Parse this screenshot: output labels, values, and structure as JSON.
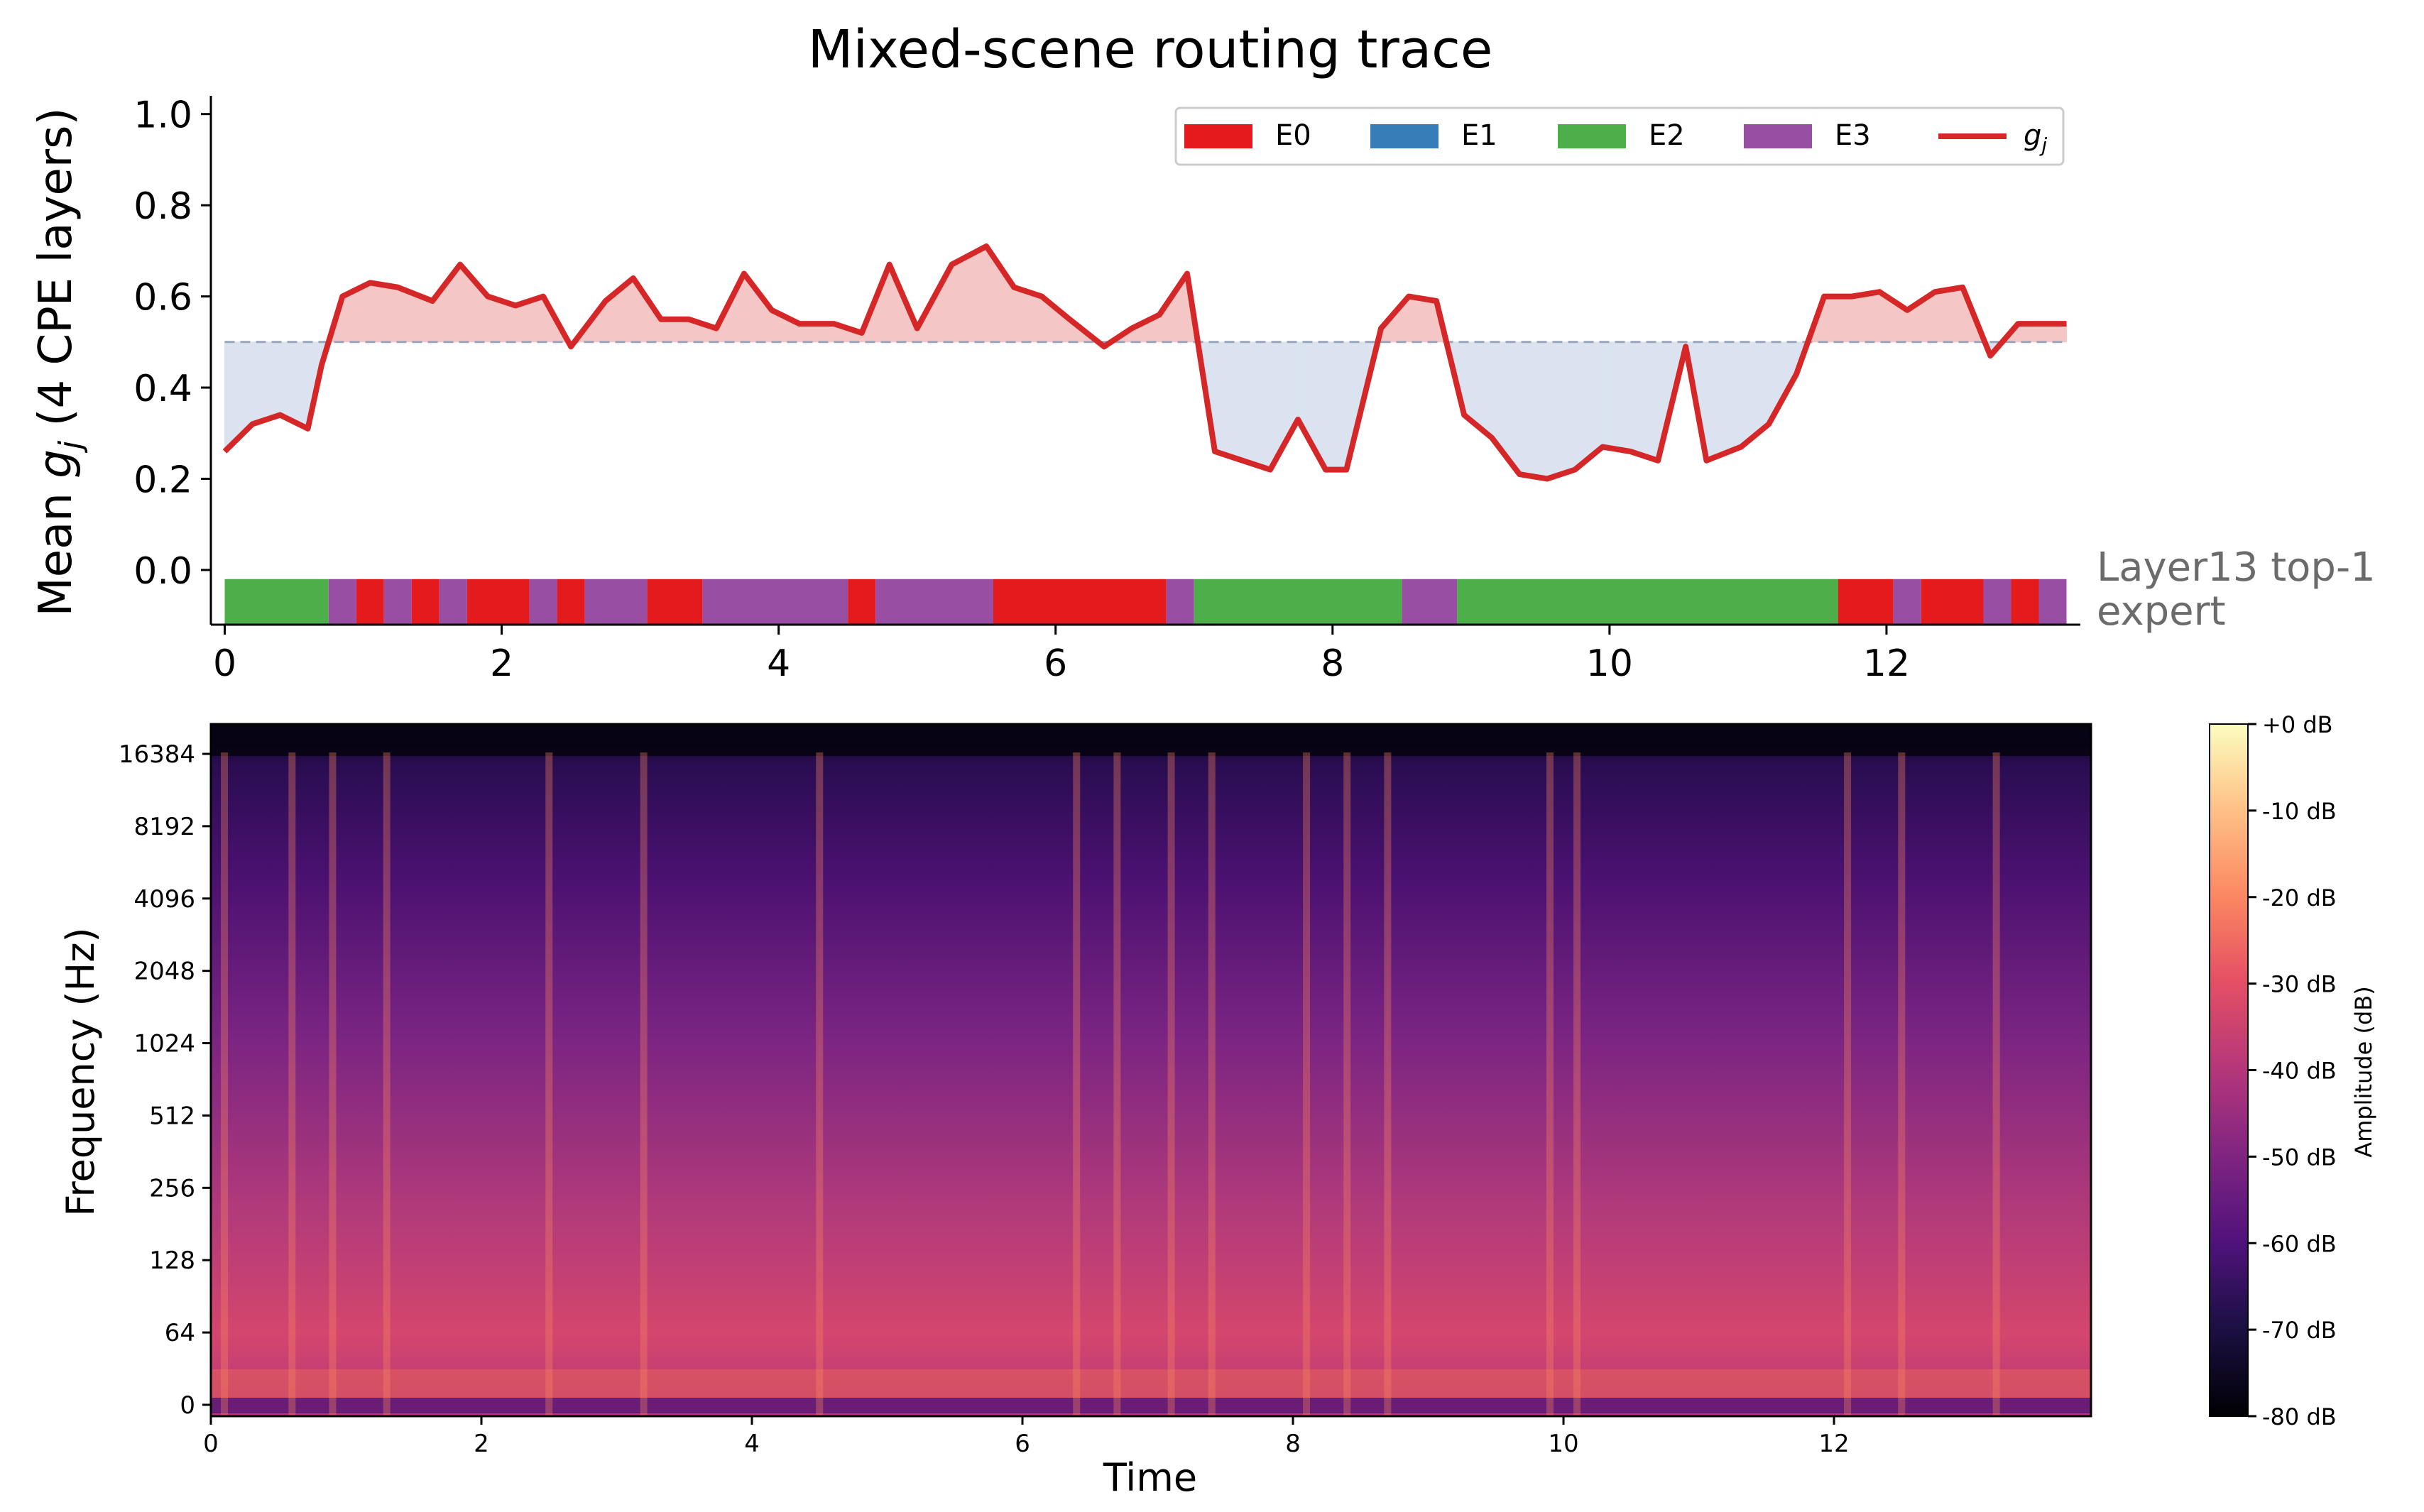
{
  "chart_data": [
    {
      "type": "line",
      "title": "Mixed-scene routing trace",
      "xlabel": "",
      "ylabel": "Mean g_j  (4 CPE layers)",
      "xlim": [
        -0.1,
        13.4
      ],
      "ylim": [
        -0.12,
        1.04
      ],
      "xticks": [
        0,
        2,
        4,
        6,
        8,
        10,
        12
      ],
      "yticks": [
        0.0,
        0.2,
        0.4,
        0.6,
        0.8,
        1.0
      ],
      "xtick_labels": [
        "0",
        "2",
        "4",
        "6",
        "8",
        "10",
        "12"
      ],
      "ytick_labels": [
        "0.0",
        "0.2",
        "0.4",
        "0.6",
        "0.8",
        "1.0"
      ],
      "threshold": 0.5,
      "line_color": "#d62728",
      "above_fill_color": "#f4c7c6",
      "below_fill_color": "#dbe3f0",
      "threshold_color": "#9aa6b8",
      "legend_location": "top-right",
      "legend": [
        {
          "label": "E0",
          "color": "#e41a1c",
          "kind": "patch"
        },
        {
          "label": "E1",
          "color": "#377eb8",
          "kind": "patch"
        },
        {
          "label": "E2",
          "color": "#4daf4a",
          "kind": "patch"
        },
        {
          "label": "E3",
          "color": "#984ea3",
          "kind": "patch"
        },
        {
          "label": "g_j",
          "color": "#d62728",
          "kind": "line"
        }
      ],
      "series": [
        {
          "name": "g_j",
          "x": [
            0.0,
            0.2,
            0.4,
            0.6,
            0.7,
            0.85,
            1.05,
            1.25,
            1.5,
            1.7,
            1.9,
            2.1,
            2.3,
            2.5,
            2.75,
            2.95,
            3.15,
            3.35,
            3.55,
            3.75,
            3.95,
            4.15,
            4.4,
            4.6,
            4.8,
            5.0,
            5.25,
            5.5,
            5.7,
            5.9,
            6.1,
            6.35,
            6.55,
            6.75,
            6.95,
            7.15,
            7.35,
            7.55,
            7.75,
            7.95,
            8.1,
            8.35,
            8.55,
            8.75,
            8.95,
            9.15,
            9.35,
            9.55,
            9.75,
            9.95,
            10.15,
            10.35,
            10.55,
            10.7,
            10.95,
            11.15,
            11.35,
            11.55,
            11.75,
            11.95,
            12.15,
            12.35,
            12.55,
            12.75,
            12.95,
            13.15,
            13.3
          ],
          "values": [
            0.26,
            0.32,
            0.34,
            0.31,
            0.45,
            0.6,
            0.63,
            0.62,
            0.59,
            0.67,
            0.6,
            0.58,
            0.6,
            0.49,
            0.59,
            0.64,
            0.55,
            0.55,
            0.53,
            0.65,
            0.57,
            0.54,
            0.54,
            0.52,
            0.67,
            0.53,
            0.67,
            0.71,
            0.62,
            0.6,
            0.55,
            0.49,
            0.53,
            0.56,
            0.65,
            0.26,
            0.24,
            0.22,
            0.33,
            0.22,
            0.22,
            0.53,
            0.6,
            0.59,
            0.34,
            0.29,
            0.21,
            0.2,
            0.22,
            0.27,
            0.26,
            0.24,
            0.49,
            0.24,
            0.27,
            0.32,
            0.43,
            0.6,
            0.6,
            0.61,
            0.57,
            0.61,
            0.62,
            0.47,
            0.54,
            0.54,
            0.54
          ]
        }
      ],
      "annotation": "Layer13 top-1\nexpert",
      "expert_segments": [
        {
          "start": 0.0,
          "end": 0.75,
          "expert": "E2"
        },
        {
          "start": 0.75,
          "end": 0.95,
          "expert": "E3"
        },
        {
          "start": 0.95,
          "end": 1.15,
          "expert": "E0"
        },
        {
          "start": 1.15,
          "end": 1.35,
          "expert": "E3"
        },
        {
          "start": 1.35,
          "end": 1.55,
          "expert": "E0"
        },
        {
          "start": 1.55,
          "end": 1.75,
          "expert": "E3"
        },
        {
          "start": 1.75,
          "end": 2.2,
          "expert": "E0"
        },
        {
          "start": 2.2,
          "end": 2.4,
          "expert": "E3"
        },
        {
          "start": 2.4,
          "end": 2.6,
          "expert": "E0"
        },
        {
          "start": 2.6,
          "end": 3.05,
          "expert": "E3"
        },
        {
          "start": 3.05,
          "end": 3.45,
          "expert": "E0"
        },
        {
          "start": 3.45,
          "end": 4.5,
          "expert": "E3"
        },
        {
          "start": 4.5,
          "end": 4.7,
          "expert": "E0"
        },
        {
          "start": 4.7,
          "end": 5.55,
          "expert": "E3"
        },
        {
          "start": 5.55,
          "end": 6.8,
          "expert": "E0"
        },
        {
          "start": 6.8,
          "end": 7.0,
          "expert": "E3"
        },
        {
          "start": 7.0,
          "end": 8.5,
          "expert": "E2"
        },
        {
          "start": 8.5,
          "end": 8.9,
          "expert": "E3"
        },
        {
          "start": 8.9,
          "end": 11.65,
          "expert": "E2"
        },
        {
          "start": 11.65,
          "end": 12.05,
          "expert": "E0"
        },
        {
          "start": 12.05,
          "end": 12.25,
          "expert": "E3"
        },
        {
          "start": 12.25,
          "end": 12.7,
          "expert": "E0"
        },
        {
          "start": 12.7,
          "end": 12.9,
          "expert": "E3"
        },
        {
          "start": 12.9,
          "end": 13.1,
          "expert": "E0"
        },
        {
          "start": 13.1,
          "end": 13.3,
          "expert": "E3"
        }
      ]
    },
    {
      "type": "heatmap",
      "title": "",
      "xlabel": "Time",
      "ylabel": "Frequency (Hz)",
      "xlim": [
        0,
        13.9
      ],
      "xticks": [
        0,
        2,
        4,
        6,
        8,
        10,
        12
      ],
      "xtick_labels": [
        "0",
        "2",
        "4",
        "6",
        "8",
        "10",
        "12"
      ],
      "ytick_labels": [
        "0",
        "64",
        "128",
        "256",
        "512",
        "1024",
        "2048",
        "4096",
        "8192",
        "16384"
      ],
      "scale": "log2 frequency",
      "colormap": "magma",
      "colorbar": {
        "label": "Amplitude (dB)",
        "ticks": [
          "+0 dB",
          "-10 dB",
          "-20 dB",
          "-30 dB",
          "-40 dB",
          "-50 dB",
          "-60 dB",
          "-70 dB",
          "-80 dB"
        ],
        "range": [
          -80,
          0
        ]
      },
      "high_energy_times": [
        0.1,
        0.6,
        0.9,
        1.3,
        2.5,
        3.2,
        4.5,
        6.4,
        6.7,
        7.1,
        7.4,
        8.1,
        8.4,
        8.7,
        9.9,
        10.1,
        12.1,
        12.5,
        13.2
      ]
    }
  ]
}
